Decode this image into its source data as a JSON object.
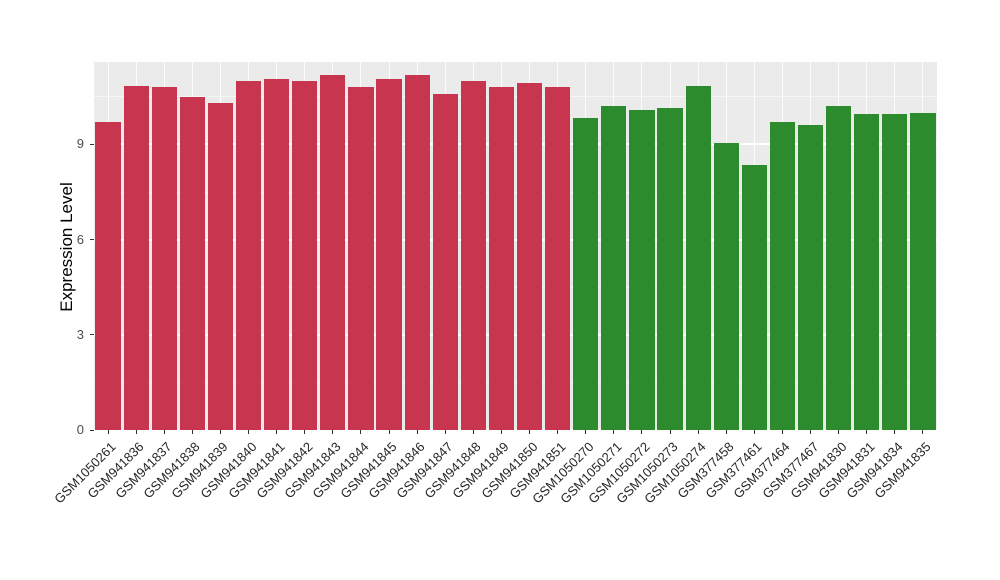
{
  "chart_data": {
    "type": "bar",
    "title": "",
    "xlabel": "",
    "ylabel": "Expression Level",
    "ylim": [
      0,
      11.6
    ],
    "yticks": [
      0,
      3,
      6,
      9
    ],
    "yticks_minor": [
      1.5,
      4.5,
      7.5,
      10.5
    ],
    "grid": "on",
    "legend": "none",
    "panel_background": "#EBEBEB",
    "figure_background": "#FFFFFF",
    "gridline_color": "#FFFFFF",
    "palette": {
      "red": "#C8354F",
      "green": "#2C8B2C"
    },
    "categories": [
      "GSM1050261",
      "GSM941836",
      "GSM941837",
      "GSM941838",
      "GSM941839",
      "GSM941840",
      "GSM941841",
      "GSM941842",
      "GSM941843",
      "GSM941844",
      "GSM941845",
      "GSM941846",
      "GSM941847",
      "GSM941848",
      "GSM941849",
      "GSM941850",
      "GSM941851",
      "GSM1050270",
      "GSM1050271",
      "GSM1050272",
      "GSM1050273",
      "GSM1050274",
      "GSM377458",
      "GSM377461",
      "GSM377464",
      "GSM377467",
      "GSM941830",
      "GSM941831",
      "GSM941834",
      "GSM941835"
    ],
    "values": [
      9.7,
      10.85,
      10.8,
      10.5,
      10.3,
      11.0,
      11.05,
      11.0,
      11.2,
      10.8,
      11.05,
      11.2,
      10.6,
      11.0,
      10.8,
      10.95,
      10.8,
      9.85,
      10.2,
      10.1,
      10.15,
      10.85,
      9.05,
      8.35,
      9.7,
      9.6,
      10.2,
      9.95,
      9.95,
      10.0
    ],
    "groups": [
      "red",
      "red",
      "red",
      "red",
      "red",
      "red",
      "red",
      "red",
      "red",
      "red",
      "red",
      "red",
      "red",
      "red",
      "red",
      "red",
      "red",
      "green",
      "green",
      "green",
      "green",
      "green",
      "green",
      "green",
      "green",
      "green",
      "green",
      "green",
      "green",
      "green"
    ]
  }
}
